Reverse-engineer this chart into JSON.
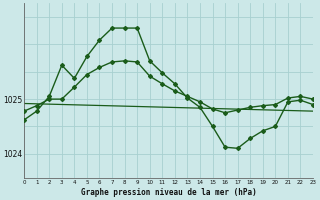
{
  "line_volatile_x": [
    0,
    1,
    2,
    3,
    4,
    5,
    6,
    7,
    8,
    9,
    10,
    11,
    12,
    13,
    14,
    15,
    16,
    17,
    18,
    19,
    20,
    21,
    22,
    23
  ],
  "line_volatile_y": [
    1024.62,
    1024.78,
    1025.05,
    1025.62,
    1025.38,
    1025.78,
    1026.08,
    1026.3,
    1026.3,
    1026.3,
    1025.7,
    1025.48,
    1025.28,
    1025.02,
    1024.85,
    1024.5,
    1024.12,
    1024.1,
    1024.28,
    1024.42,
    1024.5,
    1024.95,
    1024.98,
    1024.9
  ],
  "line_smooth_x": [
    0,
    1,
    2,
    3,
    4,
    5,
    6,
    7,
    8,
    9,
    10,
    11,
    12,
    13,
    14,
    15,
    16,
    17,
    18,
    19,
    20,
    21,
    22,
    23
  ],
  "line_smooth_y": [
    1024.78,
    1024.88,
    1025.0,
    1025.0,
    1025.22,
    1025.45,
    1025.58,
    1025.68,
    1025.7,
    1025.68,
    1025.42,
    1025.28,
    1025.15,
    1025.05,
    1024.95,
    1024.82,
    1024.75,
    1024.8,
    1024.85,
    1024.88,
    1024.9,
    1025.02,
    1025.05,
    1025.0
  ],
  "line_trend_x": [
    0,
    23
  ],
  "line_trend_y": [
    1024.92,
    1024.78
  ],
  "background_color": "#cce8e8",
  "grid_color": "#a8d0d0",
  "line_color": "#1a5c1a",
  "title": "Graphe pression niveau de la mer (hPa)",
  "ylim_min": 1023.55,
  "ylim_max": 1026.75,
  "yticks": [
    1024,
    1025
  ],
  "xlim_min": 0,
  "xlim_max": 23
}
